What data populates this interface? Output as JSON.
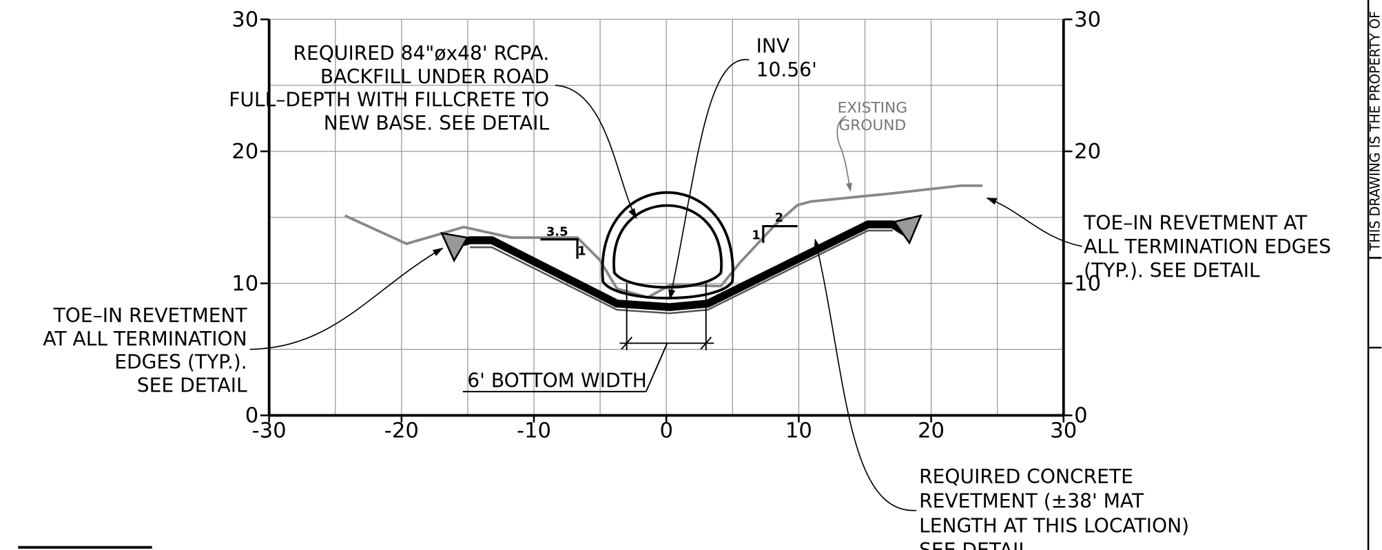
{
  "axes": {
    "xticks": [
      -30,
      -20,
      -10,
      0,
      10,
      20,
      30
    ],
    "yticks": [
      0,
      10,
      20,
      30
    ],
    "y2ticks": [
      0,
      10,
      20,
      30
    ]
  },
  "annotations": {
    "pipe_note": [
      "REQUIRED 84\"øx48' RCPA.",
      "BACKFILL UNDER ROAD",
      "FULL–DEPTH WITH FILLCRETE TO",
      "NEW BASE. SEE DETAIL"
    ],
    "inv": [
      "INV",
      "10.56'"
    ],
    "existing_ground": [
      "EXISTING",
      "GROUND"
    ],
    "toe_in_right": [
      "TOE–IN REVETMENT AT",
      "ALL TERMINATION EDGES",
      "(TYP.). SEE DETAIL"
    ],
    "toe_in_left": [
      "TOE–IN REVETMENT",
      "AT ALL TERMINATION",
      "EDGES (TYP.).",
      "SEE DETAIL"
    ],
    "bottom_width": "6' BOTTOM WIDTH",
    "revetment_note": [
      "REQUIRED CONCRETE",
      "REVETMENT (±38' MAT",
      "LENGTH AT THIS LOCATION)",
      "SEE DETAIL"
    ],
    "slope_left": [
      "3.5",
      "1"
    ],
    "slope_right": [
      "2",
      "1"
    ],
    "border_text": "THIS DRAWING IS THE PROPERTY OF"
  }
}
